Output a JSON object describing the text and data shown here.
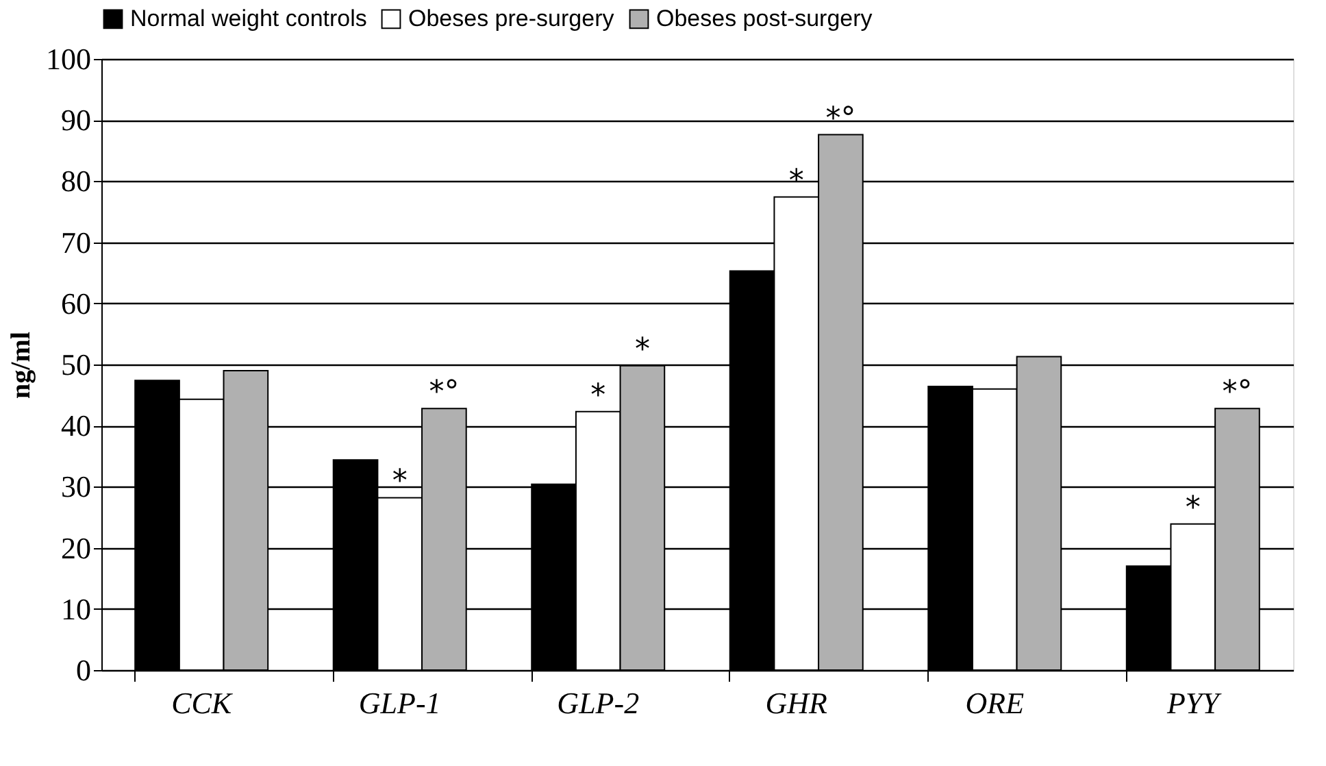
{
  "chart_data": {
    "type": "bar",
    "ylabel": "ng/ml",
    "categories": [
      "CCK",
      "GLP-1",
      "GLP-2",
      "GHR",
      "ORE",
      "PYY"
    ],
    "series": [
      {
        "name": "Normal weight controls",
        "color": "#000000",
        "values": [
          47.4,
          34.4,
          30.4,
          65.3,
          46.4,
          17.0
        ]
      },
      {
        "name": "Obeses pre-surgery",
        "color": "#ffffff",
        "values": [
          44.3,
          28.2,
          42.3,
          77.4,
          46.0,
          23.9
        ],
        "value_labels": [
          null,
          "*",
          "*",
          "*",
          null,
          "*"
        ]
      },
      {
        "name": "Obeses post-surgery",
        "color": "#b0b0b0",
        "values": [
          49.0,
          42.8,
          49.8,
          87.6,
          51.3,
          42.8
        ],
        "value_labels": [
          null,
          "*°",
          "*",
          "*°",
          null,
          "*°"
        ]
      }
    ],
    "ylim": [
      0,
      100
    ],
    "yticks": [
      0,
      10,
      20,
      30,
      40,
      50,
      60,
      70,
      80,
      90,
      100
    ],
    "grid": "y",
    "legend": "top"
  }
}
